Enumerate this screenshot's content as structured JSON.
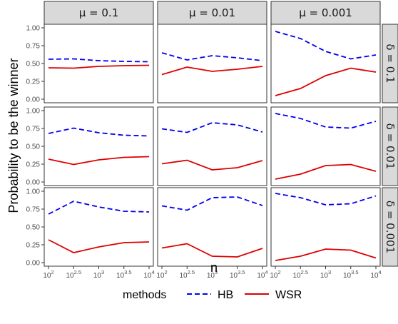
{
  "chart_data": {
    "type": "line",
    "ylabel": "Probability to be the winner",
    "xlabel": "n",
    "x": [
      2,
      2.5,
      3,
      3.5,
      4
    ],
    "x_tick_labels": [
      {
        "base": "10",
        "exp": "2"
      },
      {
        "base": "10",
        "exp": "2.5"
      },
      {
        "base": "10",
        "exp": "3"
      },
      {
        "base": "10",
        "exp": "3.5"
      },
      {
        "base": "10",
        "exp": "4"
      }
    ],
    "xlim": [
      2,
      4
    ],
    "ylim": [
      0,
      1
    ],
    "y_ticks": [
      0,
      0.25,
      0.5,
      0.75,
      1
    ],
    "y_tick_labels": [
      "0.00",
      "0.25",
      "0.50",
      "0.75",
      "1.00"
    ],
    "col_facets": [
      "μ = 0.1",
      "μ = 0.01",
      "μ = 0.001"
    ],
    "row_facets": [
      "δ = 0.1",
      "δ = 0.01",
      "δ = 0.001"
    ],
    "legend": {
      "title": "methods",
      "position": "bottom",
      "entries": [
        {
          "name": "HB",
          "color": "#0000ee",
          "dash": "dashed"
        },
        {
          "name": "WSR",
          "color": "#dd0000",
          "dash": "solid"
        }
      ]
    },
    "panels": [
      {
        "row": 0,
        "col": 0,
        "series": [
          {
            "name": "HB",
            "values": [
              0.56,
              0.565,
              0.54,
              0.53,
              0.525
            ]
          },
          {
            "name": "WSR",
            "values": [
              0.44,
              0.435,
              0.46,
              0.47,
              0.475
            ]
          }
        ]
      },
      {
        "row": 0,
        "col": 1,
        "series": [
          {
            "name": "HB",
            "values": [
              0.65,
              0.55,
              0.61,
              0.58,
              0.54
            ]
          },
          {
            "name": "WSR",
            "values": [
              0.345,
              0.45,
              0.39,
              0.42,
              0.46
            ]
          }
        ]
      },
      {
        "row": 0,
        "col": 2,
        "series": [
          {
            "name": "HB",
            "values": [
              0.95,
              0.85,
              0.67,
              0.565,
              0.62
            ]
          },
          {
            "name": "WSR",
            "values": [
              0.05,
              0.15,
              0.33,
              0.435,
              0.38
            ]
          }
        ]
      },
      {
        "row": 1,
        "col": 0,
        "series": [
          {
            "name": "HB",
            "values": [
              0.68,
              0.755,
              0.69,
              0.655,
              0.645
            ]
          },
          {
            "name": "WSR",
            "values": [
              0.32,
              0.245,
              0.31,
              0.345,
              0.355
            ]
          }
        ]
      },
      {
        "row": 1,
        "col": 1,
        "series": [
          {
            "name": "HB",
            "values": [
              0.745,
              0.695,
              0.83,
              0.8,
              0.7
            ]
          },
          {
            "name": "WSR",
            "values": [
              0.255,
              0.305,
              0.17,
              0.2,
              0.3
            ]
          }
        ]
      },
      {
        "row": 1,
        "col": 2,
        "series": [
          {
            "name": "HB",
            "values": [
              0.96,
              0.89,
              0.77,
              0.755,
              0.85
            ]
          },
          {
            "name": "WSR",
            "values": [
              0.04,
              0.11,
              0.23,
              0.245,
              0.15
            ]
          }
        ]
      },
      {
        "row": 2,
        "col": 0,
        "series": [
          {
            "name": "HB",
            "values": [
              0.68,
              0.86,
              0.78,
              0.72,
              0.71
            ]
          },
          {
            "name": "WSR",
            "values": [
              0.32,
              0.14,
              0.22,
              0.28,
              0.29
            ]
          }
        ]
      },
      {
        "row": 2,
        "col": 1,
        "series": [
          {
            "name": "HB",
            "values": [
              0.795,
              0.735,
              0.91,
              0.92,
              0.8
            ]
          },
          {
            "name": "WSR",
            "values": [
              0.205,
              0.265,
              0.09,
              0.08,
              0.2
            ]
          }
        ]
      },
      {
        "row": 2,
        "col": 2,
        "series": [
          {
            "name": "HB",
            "values": [
              0.97,
              0.91,
              0.81,
              0.825,
              0.935
            ]
          },
          {
            "name": "WSR",
            "values": [
              0.03,
              0.09,
              0.19,
              0.175,
              0.065
            ]
          }
        ]
      }
    ],
    "grid": false
  }
}
